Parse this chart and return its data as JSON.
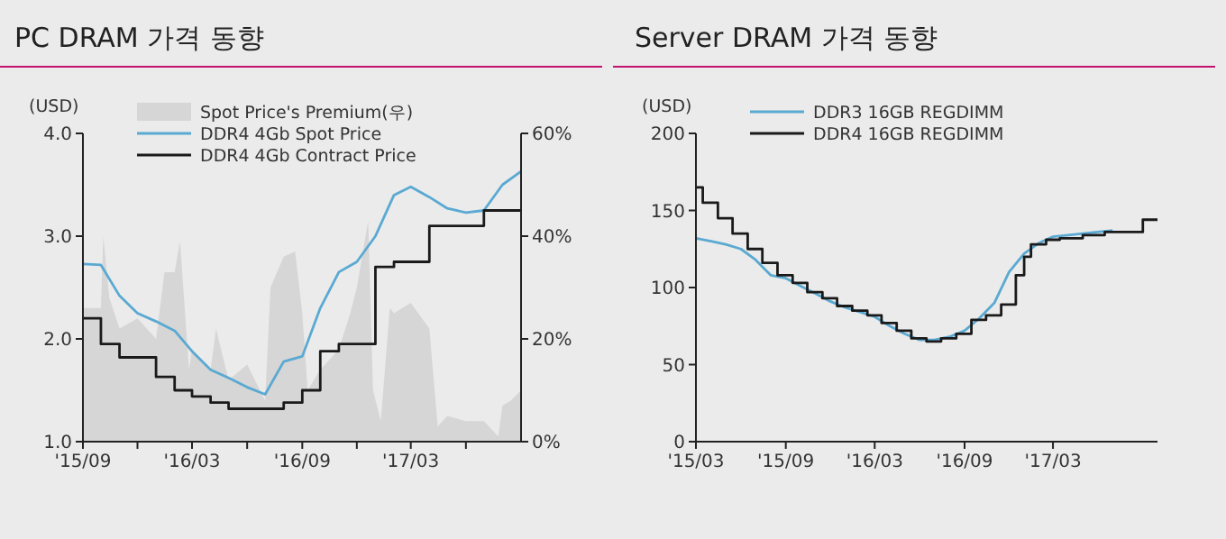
{
  "chart_data": [
    {
      "type": "line",
      "title": "PC DRAM 가격 동향",
      "ylabel": "(USD)",
      "legend": "top left",
      "xlim": [
        "2015-09",
        "2017-09"
      ],
      "xticks": [
        {
          "value": "2015-09",
          "label": "'15/09"
        },
        {
          "value": "2015-12",
          "label": null
        },
        {
          "value": "2016-03",
          "label": "'16/03"
        },
        {
          "value": "2016-06",
          "label": null
        },
        {
          "value": "2016-09",
          "label": "'16/09"
        },
        {
          "value": "2016-12",
          "label": null
        },
        {
          "value": "2017-03",
          "label": "'17/03"
        },
        {
          "value": "2017-06",
          "label": null
        }
      ],
      "ylim": [
        1,
        4
      ],
      "yticks": [
        {
          "value": 1,
          "label": "1.0"
        },
        {
          "value": 2,
          "label": "2.0"
        },
        {
          "value": 3,
          "label": "3.0"
        },
        {
          "value": 4,
          "label": "4.0"
        }
      ],
      "y2lim": [
        0,
        60
      ],
      "y2ticks": [
        {
          "value": 0,
          "label": "0%"
        },
        {
          "value": 20,
          "label": "20%"
        },
        {
          "value": 40,
          "label": "40%"
        },
        {
          "value": 60,
          "label": "60%"
        }
      ],
      "series": [
        {
          "name": "Spot Price's Premium(우)",
          "type": "area",
          "axis": "y2",
          "color": "#d6d6d6",
          "x": [
            "2015-09-01",
            "2015-10-01",
            "2015-10-05",
            "2015-10-15",
            "2015-11-01",
            "2015-12-01",
            "2016-01-01",
            "2016-01-15",
            "2016-02-01",
            "2016-02-10",
            "2016-02-25",
            "2016-03-01",
            "2016-04-01",
            "2016-04-10",
            "2016-05-01",
            "2016-06-01",
            "2016-07-01",
            "2016-07-10",
            "2016-08-01",
            "2016-08-20",
            "2016-09-01",
            "2016-09-10",
            "2016-10-01",
            "2016-11-01",
            "2016-11-20",
            "2016-12-01",
            "2016-12-20",
            "2016-12-28",
            "2017-01-10",
            "2017-01-25",
            "2017-02-01",
            "2017-03-01",
            "2017-04-01",
            "2017-04-15",
            "2017-05-01",
            "2017-06-01",
            "2017-07-01",
            "2017-07-25",
            "2017-08-01",
            "2017-08-15",
            "2017-09-01"
          ],
          "values": [
            26,
            26,
            40,
            28,
            22,
            24,
            20,
            33,
            33,
            39,
            14,
            18,
            14,
            22,
            12,
            15,
            8,
            30,
            36,
            37,
            25,
            10,
            14,
            18,
            25,
            30,
            43,
            10,
            4,
            26,
            25,
            27,
            22,
            3,
            5,
            4,
            4,
            1,
            7,
            8,
            10
          ]
        },
        {
          "name": "DDR4 4Gb Spot Price",
          "color": "#5aa9d2",
          "x": [
            "2015-09",
            "2015-10",
            "2015-11",
            "2015-12",
            "2016-01",
            "2016-02",
            "2016-03",
            "2016-04",
            "2016-05",
            "2016-06",
            "2016-07",
            "2016-08",
            "2016-09",
            "2016-10",
            "2016-11",
            "2016-12",
            "2017-01",
            "2017-02",
            "2017-03",
            "2017-04",
            "2017-05",
            "2017-06",
            "2017-07",
            "2017-08",
            "2017-09"
          ],
          "values": [
            2.73,
            2.72,
            2.42,
            2.25,
            2.17,
            2.08,
            1.88,
            1.7,
            1.62,
            1.53,
            1.46,
            1.78,
            1.83,
            2.3,
            2.65,
            2.75,
            3.0,
            3.4,
            3.48,
            3.38,
            3.27,
            3.23,
            3.25,
            3.5,
            3.63
          ]
        },
        {
          "name": "DDR4 4Gb Contract Price",
          "type": "step",
          "color": "#1a1a1a",
          "x": [
            "2015-09",
            "2015-10",
            "2015-11",
            "2016-01",
            "2016-02",
            "2016-03",
            "2016-04",
            "2016-05",
            "2016-08",
            "2016-09",
            "2016-10",
            "2016-11",
            "2017-01",
            "2017-02",
            "2017-04",
            "2017-07",
            "2017-09"
          ],
          "values": [
            2.2,
            1.95,
            1.82,
            1.63,
            1.5,
            1.44,
            1.38,
            1.32,
            1.38,
            1.5,
            1.88,
            1.95,
            2.7,
            2.75,
            3.1,
            3.25,
            3.25
          ]
        }
      ]
    },
    {
      "type": "line",
      "title": "Server DRAM 가격 동향",
      "ylabel": "(USD)",
      "legend": "top left",
      "xlim": [
        "2015-03",
        "2017-10"
      ],
      "xticks": [
        {
          "value": "2015-03",
          "label": "'15/03"
        },
        {
          "value": "2015-09",
          "label": "'15/09"
        },
        {
          "value": "2016-03",
          "label": "'16/03"
        },
        {
          "value": "2016-09",
          "label": "'16/09"
        },
        {
          "value": "2017-03",
          "label": "'17/03"
        }
      ],
      "ylim": [
        0,
        200
      ],
      "yticks": [
        0,
        50,
        100,
        150,
        200
      ],
      "series": [
        {
          "name": "DDR3 16GB REGDIMM",
          "color": "#5aa9d2",
          "x": [
            "2015-03",
            "2015-04",
            "2015-05",
            "2015-06",
            "2015-07",
            "2015-08",
            "2015-09",
            "2015-10",
            "2015-11",
            "2015-12",
            "2016-01",
            "2016-02",
            "2016-03",
            "2016-04",
            "2016-05",
            "2016-06",
            "2016-07",
            "2016-08",
            "2016-09",
            "2016-10",
            "2016-11",
            "2016-12",
            "2017-01",
            "2017-02",
            "2017-03",
            "2017-04",
            "2017-05",
            "2017-06",
            "2017-07"
          ],
          "values": [
            132,
            130,
            128,
            125,
            118,
            108,
            106,
            101,
            96,
            91,
            87,
            84,
            81,
            75,
            70,
            66,
            66,
            68,
            72,
            80,
            90,
            110,
            122,
            129,
            133,
            134,
            135,
            136,
            137
          ]
        },
        {
          "name": "DDR4 16GB REGDIMM",
          "type": "step",
          "color": "#1a1a1a",
          "x": [
            "2015-03-01",
            "2015-03-15",
            "2015-04-15",
            "2015-05-15",
            "2015-06-15",
            "2015-07-15",
            "2015-08-15",
            "2015-09-15",
            "2015-10-15",
            "2015-11-15",
            "2015-12-15",
            "2016-01-15",
            "2016-02-15",
            "2016-03-15",
            "2016-04-15",
            "2016-05-15",
            "2016-06-15",
            "2016-07-15",
            "2016-08-15",
            "2016-09-15",
            "2016-10-15",
            "2016-11-15",
            "2016-12-15",
            "2017-01-01",
            "2017-01-15",
            "2017-02-15",
            "2017-03-15",
            "2017-05-01",
            "2017-06-15",
            "2017-09-01",
            "2017-10-01"
          ],
          "values": [
            165,
            155,
            145,
            135,
            125,
            116,
            108,
            103,
            97,
            93,
            88,
            85,
            82,
            77,
            72,
            67,
            65,
            67,
            70,
            79,
            82,
            89,
            108,
            120,
            128,
            131,
            132,
            134,
            136,
            144,
            144
          ]
        }
      ]
    }
  ]
}
